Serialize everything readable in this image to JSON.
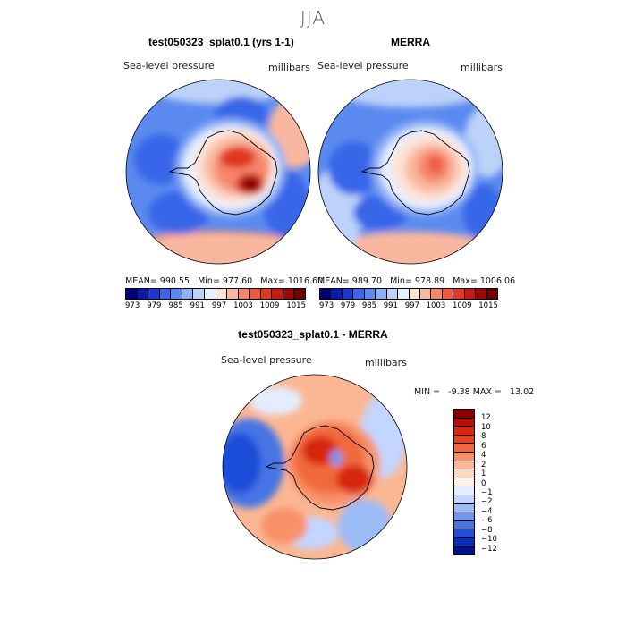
{
  "season": "JJA",
  "panels": {
    "model": {
      "title": "test050323_splat0.1 (yrs 1-1)",
      "field": "Sea-level pressure",
      "units": "millibars",
      "stats": "MEAN= 990.55   Min= 977.60   Max= 1016.60"
    },
    "obs": {
      "title": "MERRA",
      "field": "Sea-level pressure",
      "units": "millibars",
      "stats": "MEAN= 989.70   Min= 978.89   Max= 1006.06"
    },
    "diff": {
      "title": "test050323_splat0.1 - MERRA",
      "field": "Sea-level pressure",
      "units": "millibars",
      "stats": "MIN =   -9.38 MAX =   13.02"
    }
  },
  "colorbar_main": {
    "colors": [
      "#00007a",
      "#0a1aa8",
      "#1b39cf",
      "#3766e8",
      "#5a8af0",
      "#8cb0f5",
      "#bcd2f8",
      "#e6efff",
      "#fde2d6",
      "#f9b79f",
      "#f5866a",
      "#ee5a3f",
      "#e0391f",
      "#c61a10",
      "#9a0a05",
      "#6e0000"
    ],
    "tick_labels": [
      "973",
      "979",
      "985",
      "991",
      "997",
      "1003",
      "1009",
      "1015"
    ]
  },
  "colorbar_diff": {
    "colors": [
      "#8a0000",
      "#b40f05",
      "#d62611",
      "#e8431f",
      "#f2693d",
      "#f79167",
      "#fbb793",
      "#fdd9c2",
      "#fff1e8",
      "#e3edff",
      "#c2d6ff",
      "#9cbcf8",
      "#7198ee",
      "#4674e5",
      "#1f4ed8",
      "#0a2cb8",
      "#00138a"
    ],
    "tick_labels": [
      "12",
      "10",
      "8",
      "6",
      "4",
      "2",
      "1",
      "0",
      "−1",
      "−2",
      "−4",
      "−6",
      "−8",
      "−10",
      "−12"
    ]
  }
}
